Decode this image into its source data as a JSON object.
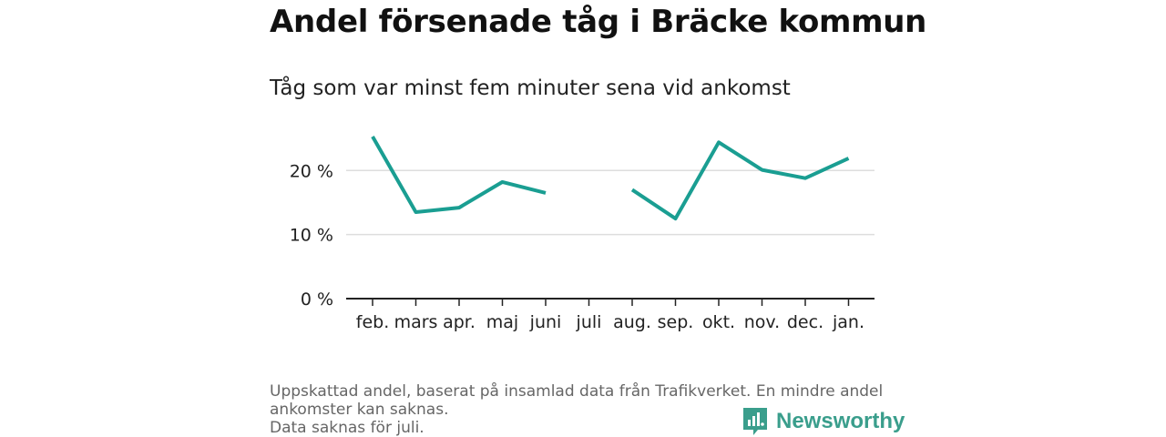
{
  "title": "Andel försenade tåg i Bräcke kommun",
  "subtitle": "Tåg som var minst fem minuter sena vid ankomst",
  "footnote": {
    "line1": "Uppskattad andel, baserat på insamlad data från Trafikverket. En mindre andel ankomster kan saknas.",
    "line2": "Data saknas för juli."
  },
  "brand": {
    "name": "Newsworthy",
    "color": "#3a9e8c",
    "icon": "newsworthy-logo-icon"
  },
  "chart_data": {
    "type": "line",
    "categories": [
      "feb.",
      "mars",
      "apr.",
      "maj",
      "juni",
      "juli",
      "aug.",
      "sep.",
      "okt.",
      "nov.",
      "dec.",
      "jan."
    ],
    "series": [
      {
        "name": "",
        "values": [
          25.3,
          13.5,
          14.2,
          18.2,
          16.5,
          null,
          17.0,
          12.5,
          24.4,
          20.1,
          18.8,
          21.9
        ]
      }
    ],
    "y_ticks": [
      0,
      10,
      20
    ],
    "y_tick_labels": [
      "0 %",
      "10 %",
      "20 %"
    ],
    "ylim": [
      0,
      28
    ],
    "xlabel": "",
    "ylabel": "",
    "grid": true,
    "line_color": "#1a9e92"
  }
}
